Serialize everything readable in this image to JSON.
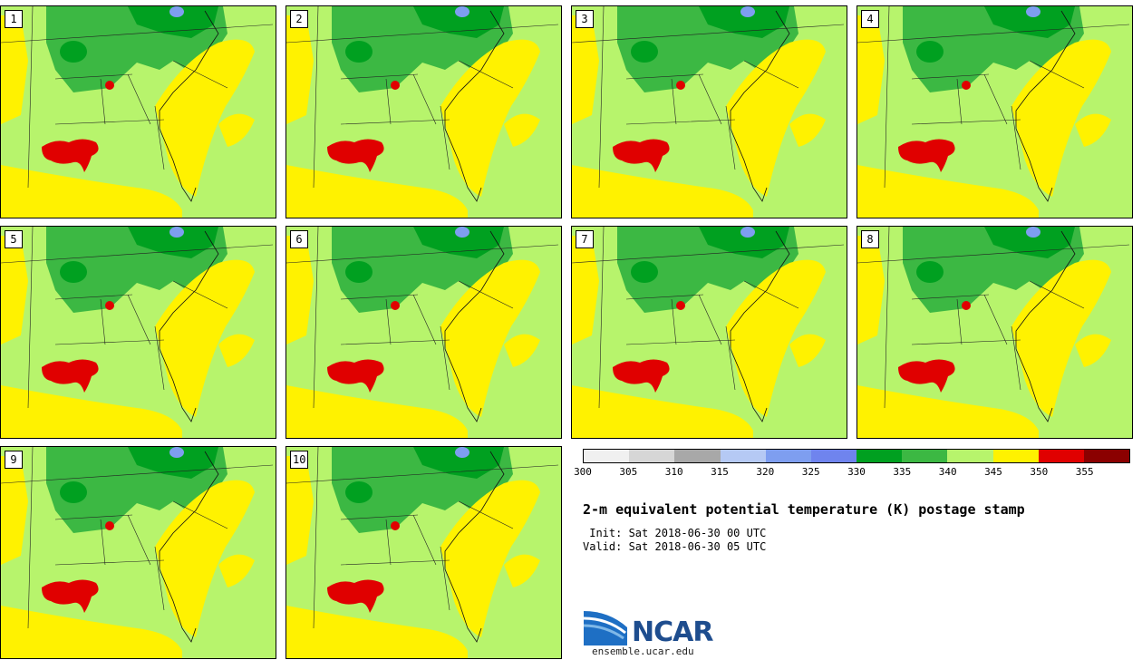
{
  "panels": [
    "1",
    "2",
    "3",
    "4",
    "5",
    "6",
    "7",
    "8",
    "9",
    "10"
  ],
  "colorbar": {
    "colors": [
      "#f0f0f0",
      "#d6d6d6",
      "#a8a8a8",
      "#b5c9f4",
      "#7e9ef0",
      "#6f84ee",
      "#00a020",
      "#3cb843",
      "#b7f46c",
      "#fff200",
      "#e00000",
      "#8b0000"
    ],
    "tick_labels": [
      "300",
      "305",
      "310",
      "315",
      "320",
      "325",
      "330",
      "335",
      "340",
      "345",
      "350",
      "355"
    ]
  },
  "title": "2-m equivalent potential temperature (K) postage stamp",
  "init_line": " Init: Sat 2018-06-30 00 UTC",
  "valid_line": "Valid: Sat 2018-06-30 05 UTC",
  "logo_text": "NCAR",
  "logo_url": "ensemble.ucar.edu"
}
